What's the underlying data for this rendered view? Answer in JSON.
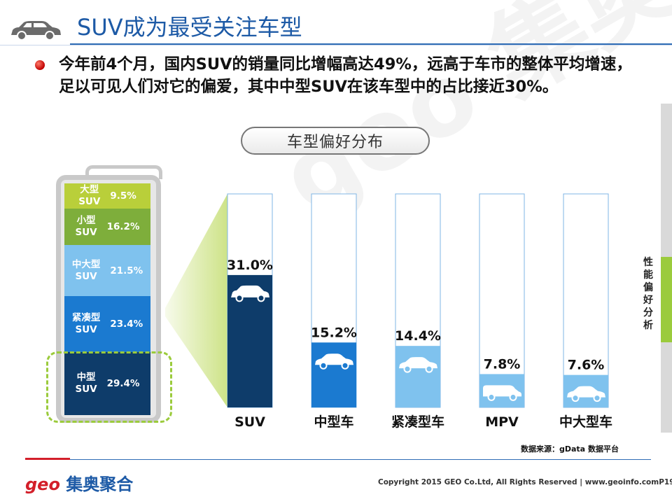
{
  "header": {
    "title": "SUV成为最受关注车型",
    "icon": "car-icon"
  },
  "intro": {
    "text": "今年前4个月，国内SUV的销量同比增幅高达49%，远高于车市的整体平均增速，足以可见人们对它的偏爱，其中中型SUV在该车型中的占比接近30%。"
  },
  "pill_label": "车型偏好分布",
  "watermark": "geo 集奥聚合",
  "suv_breakdown": [
    {
      "name_line1": "大型",
      "name_line2": "SUV",
      "pct": "9.5%",
      "color": "#b9cf3a"
    },
    {
      "name_line1": "小型",
      "name_line2": "SUV",
      "pct": "16.2%",
      "color": "#7eae3b"
    },
    {
      "name_line1": "中大型",
      "name_line2": "SUV",
      "pct": "21.5%",
      "color": "#7fc2ee"
    },
    {
      "name_line1": "紧凑型",
      "name_line2": "SUV",
      "pct": "23.4%",
      "color": "#1b7ad0"
    },
    {
      "name_line1": "中型",
      "name_line2": "SUV",
      "pct": "29.4%",
      "color": "#0e3c6a"
    }
  ],
  "chart_data": {
    "type": "bar",
    "categories": [
      "SUV",
      "中型车",
      "紧凑型车",
      "MPV",
      "中大型车"
    ],
    "values": [
      31.0,
      15.2,
      14.4,
      7.8,
      7.6
    ],
    "value_labels": [
      "31.0%",
      "15.2%",
      "14.4%",
      "7.8%",
      "7.6%"
    ],
    "colors": [
      "#0e3c6a",
      "#1b7ad0",
      "#7fc2ee",
      "#7fc2ee",
      "#7fc2ee"
    ],
    "icons": [
      "suv-icon",
      "sedan-icon",
      "sedan-icon",
      "van-icon",
      "sedan-icon"
    ],
    "ylim": [
      0,
      50
    ],
    "title": "",
    "xlabel": "",
    "ylabel": ""
  },
  "source_note": "数据来源：gData 数据平台",
  "footer": {
    "logo_latin": "geo",
    "logo_cn": "集奥聚合",
    "copyright": "Copyright 2015 GEO Co.Ltd, All Rights Reserved  |  www.geoinfo.com",
    "page": "P19"
  },
  "sidebar_label": "性能偏好分析",
  "colors": {
    "accent_blue": "#1d5aa6",
    "accent_red": "#d31f2a",
    "accent_green": "#9bcb3c"
  }
}
